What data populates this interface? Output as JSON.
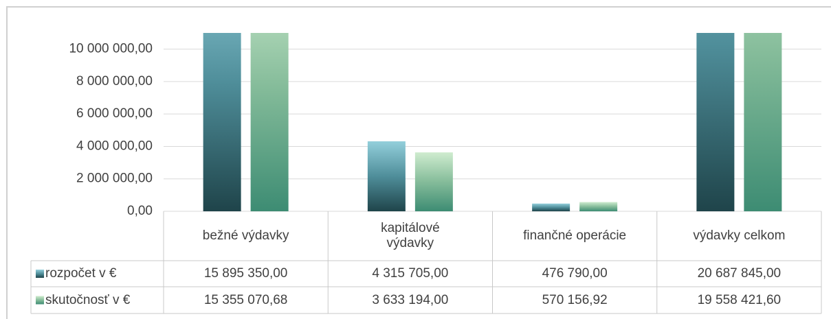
{
  "chart_data": {
    "type": "bar",
    "categories": [
      "bežné výdavky",
      "kapitálové výdavky",
      "finančné operácie",
      "výdavky celkom"
    ],
    "series": [
      {
        "name": "rozpočet v €",
        "color": "#4f8e9a",
        "values": [
          15895350,
          4315705,
          476790,
          20687845
        ],
        "value_labels": [
          "15 895 350,00",
          "4 315 705,00",
          "476 790,00",
          "20 687 845,00"
        ]
      },
      {
        "name": "skutočnosť v €",
        "color": "#6aab8e",
        "values": [
          15355070.68,
          3633194,
          570156.92,
          19558421.6
        ],
        "value_labels": [
          "15 355 070,68",
          "3 633 194,00",
          "570 156,92",
          "19 558 421,60"
        ]
      }
    ],
    "ylim": [
      0,
      11000000
    ],
    "yticks": [
      {
        "value": 0,
        "label": "0,00"
      },
      {
        "value": 2000000,
        "label": "2 000 000,00"
      },
      {
        "value": 4000000,
        "label": "4 000 000,00"
      },
      {
        "value": 6000000,
        "label": "6 000 000,00"
      },
      {
        "value": 8000000,
        "label": "8 000 000,00"
      },
      {
        "value": 10000000,
        "label": "10 000 000,00"
      }
    ],
    "grid": true
  }
}
